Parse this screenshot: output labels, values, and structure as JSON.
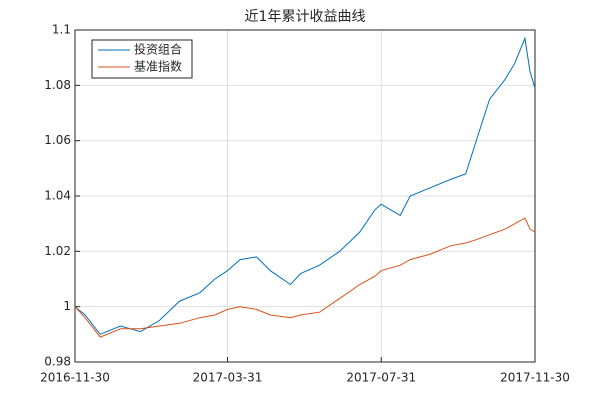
{
  "chart_data": {
    "type": "line",
    "title": "近1年累计收益曲线",
    "x": [
      "2016-11-30",
      "2016-12-08",
      "2016-12-20",
      "2017-01-05",
      "2017-01-21",
      "2017-02-05",
      "2017-02-21",
      "2017-03-09",
      "2017-03-21",
      "2017-03-31",
      "2017-04-10",
      "2017-04-23",
      "2017-05-04",
      "2017-05-20",
      "2017-05-28",
      "2017-06-12",
      "2017-06-28",
      "2017-07-14",
      "2017-07-26",
      "2017-07-31",
      "2017-08-15",
      "2017-08-23",
      "2017-09-08",
      "2017-09-24",
      "2017-10-06",
      "2017-10-13",
      "2017-10-25",
      "2017-11-06",
      "2017-11-14",
      "2017-11-22",
      "2017-11-26",
      "2017-11-30"
    ],
    "series": [
      {
        "name": "投资组合",
        "color": "#0072bd",
        "values": [
          1.0,
          0.997,
          0.99,
          0.993,
          0.991,
          0.995,
          1.002,
          1.005,
          1.01,
          1.013,
          1.017,
          1.018,
          1.013,
          1.008,
          1.012,
          1.015,
          1.02,
          1.027,
          1.035,
          1.037,
          1.033,
          1.04,
          1.043,
          1.046,
          1.048,
          1.058,
          1.075,
          1.082,
          1.088,
          1.097,
          1.085,
          1.079
        ]
      },
      {
        "name": "基准指数",
        "color": "#d95319",
        "values": [
          1.0,
          0.996,
          0.989,
          0.992,
          0.992,
          0.993,
          0.994,
          0.996,
          0.997,
          0.999,
          1.0,
          0.999,
          0.997,
          0.996,
          0.997,
          0.998,
          1.003,
          1.008,
          1.011,
          1.013,
          1.015,
          1.017,
          1.019,
          1.022,
          1.023,
          1.024,
          1.026,
          1.028,
          1.03,
          1.032,
          1.028,
          1.027
        ]
      }
    ],
    "xlim": [
      "2016-11-30",
      "2017-11-30"
    ],
    "xticks": [
      "2016-11-30",
      "2017-03-31",
      "2017-07-31",
      "2017-11-30"
    ],
    "ylim": [
      0.98,
      1.1
    ],
    "yticks": [
      0.98,
      1,
      1.02,
      1.04,
      1.06,
      1.08,
      1.1
    ],
    "grid": true,
    "legend": "upper-left"
  }
}
